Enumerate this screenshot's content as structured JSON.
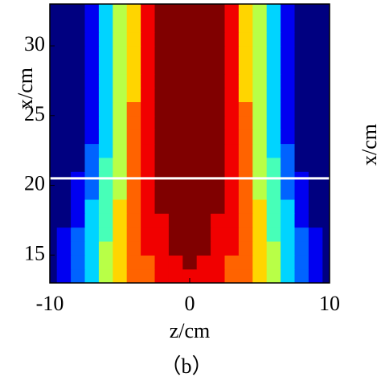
{
  "chart_data": {
    "type": "heatmap",
    "colormap": "jet",
    "x_label": "z/cm",
    "y_label": "x/cm",
    "side_label": "x/cm",
    "caption": "（b）",
    "xlim": [
      -10,
      10
    ],
    "ylim": [
      13,
      33
    ],
    "xticks": [
      -10,
      0,
      10
    ],
    "yticks": [
      15,
      20,
      25,
      30
    ],
    "hline": {
      "y": 20.5,
      "color": "#ffffff"
    },
    "x": [
      -10,
      -9,
      -8,
      -7,
      -6,
      -5,
      -4,
      -3,
      -2,
      -1,
      0,
      1,
      2,
      3,
      4,
      5,
      6,
      7,
      8,
      9,
      10
    ],
    "y": [
      13.5,
      14.5,
      15.5,
      16.5,
      17.5,
      18.5,
      19.5,
      20.5,
      21.5,
      22.5,
      23.5,
      24.5,
      25.5,
      26.5,
      27.5,
      28.5,
      29.5,
      30.5,
      31.5,
      32.5
    ],
    "z": [
      [
        10,
        18,
        28,
        40,
        52,
        62,
        70,
        77,
        83,
        87,
        88,
        87,
        83,
        77,
        70,
        62,
        52,
        40,
        28,
        18,
        10
      ],
      [
        9,
        17,
        27,
        40,
        52,
        62,
        71,
        78,
        84,
        88,
        89,
        88,
        84,
        78,
        71,
        62,
        52,
        40,
        27,
        17,
        9
      ],
      [
        8,
        15,
        26,
        38,
        51,
        62,
        71,
        79,
        85,
        89,
        90,
        89,
        85,
        79,
        71,
        62,
        51,
        38,
        26,
        15,
        8
      ],
      [
        7,
        13,
        24,
        37,
        50,
        62,
        72,
        80,
        87,
        91,
        92,
        91,
        87,
        80,
        72,
        62,
        50,
        37,
        24,
        13,
        7
      ],
      [
        6,
        11,
        21,
        35,
        49,
        61,
        72,
        81,
        88,
        93,
        94,
        93,
        88,
        81,
        72,
        61,
        49,
        35,
        21,
        11,
        6
      ],
      [
        5,
        9,
        18,
        32,
        47,
        60,
        71,
        81,
        89,
        95,
        96,
        95,
        89,
        81,
        71,
        60,
        47,
        32,
        18,
        9,
        5
      ],
      [
        5,
        8,
        16,
        30,
        45,
        59,
        71,
        81,
        90,
        95,
        97,
        95,
        90,
        81,
        71,
        59,
        45,
        30,
        16,
        8,
        5
      ],
      [
        4,
        7,
        14,
        28,
        44,
        58,
        70,
        81,
        89,
        93,
        94,
        93,
        89,
        81,
        70,
        58,
        44,
        28,
        14,
        7,
        4
      ],
      [
        4,
        6,
        12,
        25,
        42,
        57,
        70,
        81,
        90,
        95,
        96,
        95,
        90,
        81,
        70,
        57,
        42,
        25,
        12,
        6,
        4
      ],
      [
        3,
        5,
        10,
        22,
        40,
        56,
        70,
        82,
        91,
        96,
        98,
        96,
        91,
        82,
        70,
        56,
        40,
        22,
        10,
        5,
        3
      ],
      [
        3,
        5,
        10,
        21,
        39,
        55,
        70,
        82,
        91,
        97,
        98,
        97,
        91,
        82,
        70,
        55,
        39,
        21,
        10,
        5,
        3
      ],
      [
        3,
        5,
        9,
        20,
        38,
        55,
        70,
        82,
        91,
        97,
        98,
        97,
        91,
        82,
        70,
        55,
        38,
        20,
        9,
        5,
        3
      ],
      [
        3,
        5,
        9,
        20,
        38,
        55,
        70,
        82,
        91,
        96,
        97,
        96,
        91,
        82,
        70,
        55,
        38,
        20,
        9,
        5,
        3
      ],
      [
        3,
        4,
        8,
        19,
        37,
        54,
        69,
        81,
        90,
        94,
        95,
        94,
        90,
        81,
        69,
        54,
        37,
        19,
        8,
        4,
        3
      ],
      [
        3,
        4,
        8,
        18,
        36,
        53,
        68,
        80,
        89,
        93,
        94,
        93,
        89,
        80,
        68,
        53,
        36,
        18,
        8,
        4,
        3
      ],
      [
        3,
        4,
        8,
        18,
        35,
        52,
        67,
        80,
        89,
        93,
        93,
        93,
        89,
        80,
        67,
        52,
        35,
        18,
        8,
        4,
        3
      ],
      [
        3,
        4,
        8,
        18,
        35,
        52,
        67,
        80,
        89,
        93,
        94,
        93,
        89,
        80,
        67,
        52,
        35,
        18,
        8,
        4,
        3
      ],
      [
        3,
        4,
        8,
        18,
        35,
        52,
        67,
        80,
        89,
        93,
        93,
        93,
        89,
        80,
        67,
        52,
        35,
        18,
        8,
        4,
        3
      ],
      [
        3,
        4,
        8,
        18,
        35,
        52,
        67,
        80,
        89,
        92,
        93,
        92,
        89,
        80,
        67,
        52,
        35,
        18,
        8,
        4,
        3
      ],
      [
        3,
        4,
        8,
        18,
        35,
        52,
        67,
        80,
        89,
        93,
        93,
        93,
        89,
        80,
        67,
        52,
        35,
        18,
        8,
        4,
        3
      ]
    ]
  }
}
